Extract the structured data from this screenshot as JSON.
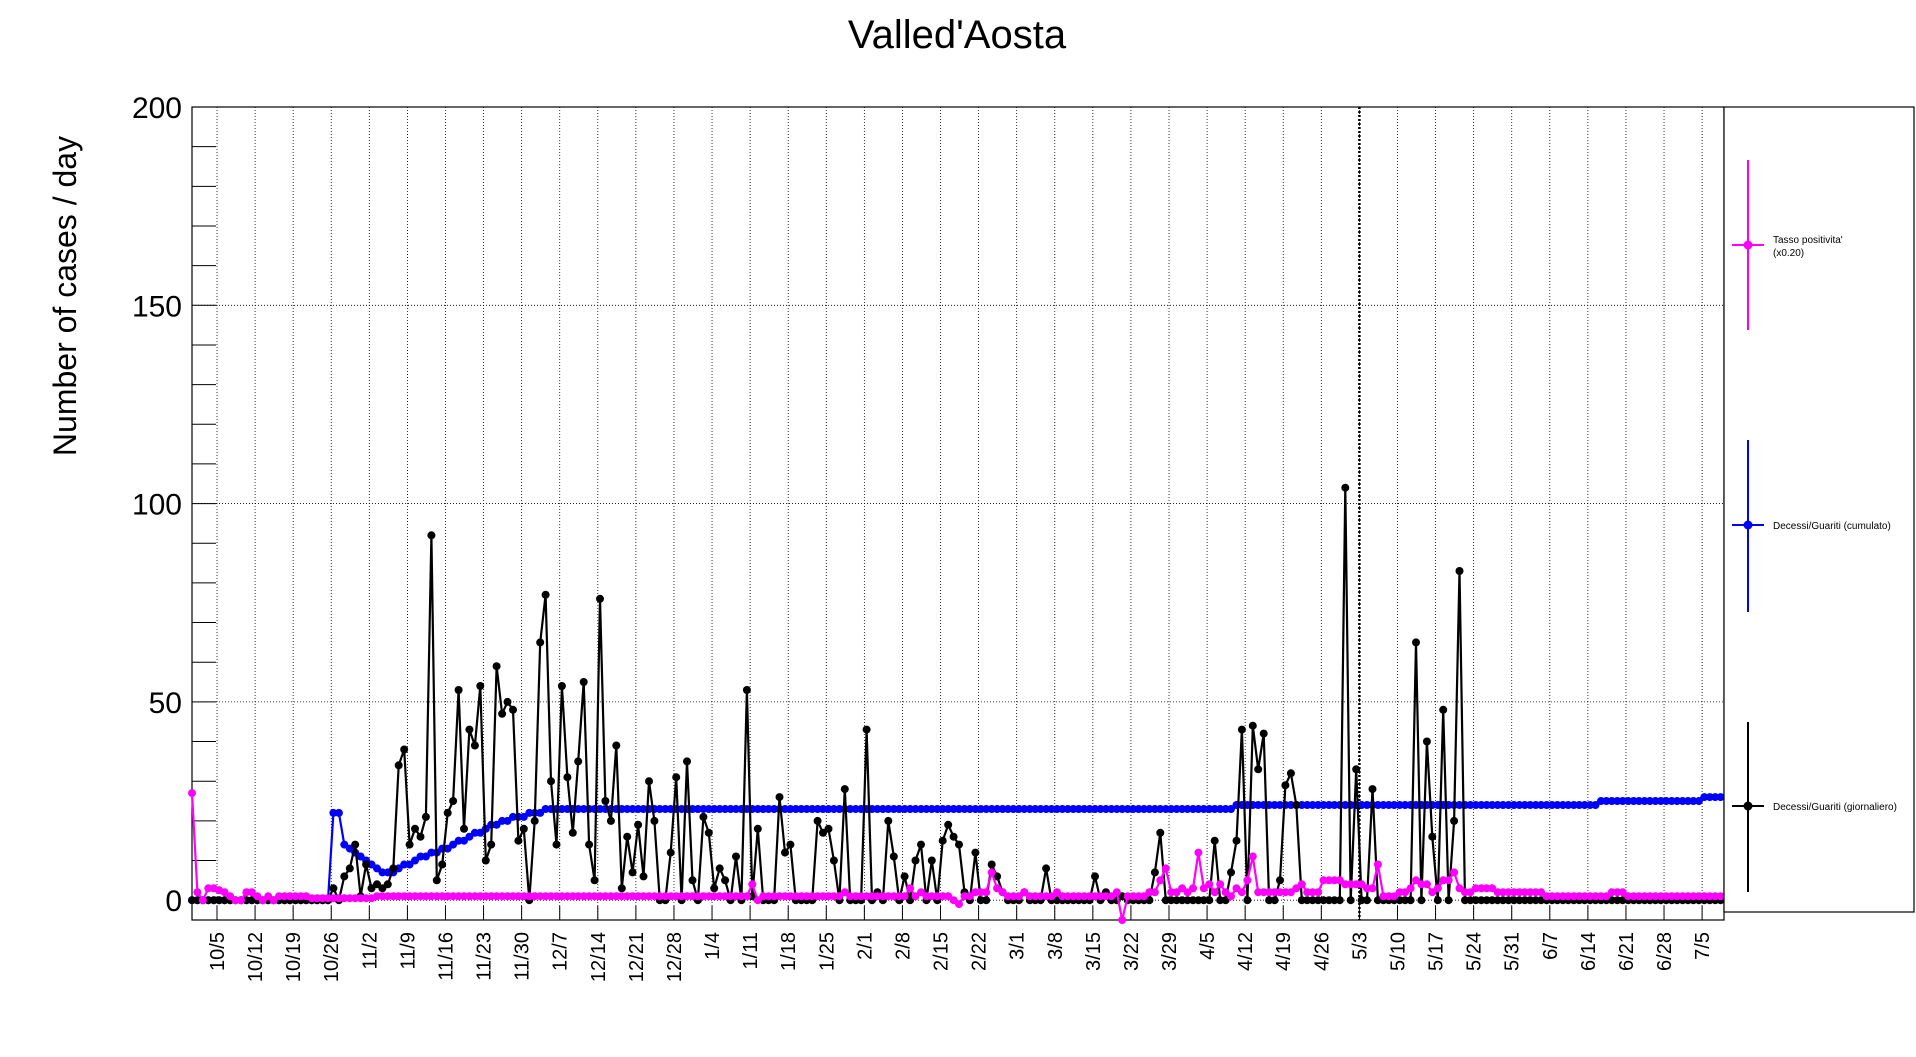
{
  "colors": {
    "positivity": "#ff00ff",
    "cumulative": "#0000ff",
    "daily": "#000000",
    "grid": "#000000",
    "background": "#ffffff"
  },
  "chart_data": {
    "type": "line",
    "title": "Valled'Aosta",
    "ylabel": "Number of cases / day",
    "xlabel": "",
    "ylim": [
      -5,
      200
    ],
    "y_ticks": [
      0,
      50,
      100,
      150,
      200
    ],
    "x_ticks": [
      "10/5",
      "10/12",
      "10/19",
      "10/26",
      "11/2",
      "11/9",
      "11/16",
      "11/23",
      "11/30",
      "12/7",
      "12/14",
      "12/21",
      "12/28",
      "1/4",
      "1/11",
      "1/18",
      "1/25",
      "2/1",
      "2/8",
      "2/15",
      "2/22",
      "3/1",
      "3/8",
      "3/15",
      "3/22",
      "3/29",
      "4/5",
      "4/12",
      "4/19",
      "4/26",
      "5/3",
      "5/10",
      "5/17",
      "5/24",
      "5/31",
      "6/7",
      "6/14",
      "6/21",
      "6/28",
      "7/5"
    ],
    "grid": true,
    "legend_position": "right",
    "vertical_marker": "5/3",
    "series": [
      {
        "name": "Tasso positivita' (x0.20)",
        "color": "#ff00ff",
        "values": [
          27,
          2,
          0,
          3,
          3,
          2.5,
          2,
          1,
          0,
          0,
          2,
          2,
          1,
          0,
          1,
          0,
          1,
          1,
          1,
          1,
          1,
          1,
          0.5,
          0.5,
          0.5,
          0.5,
          0.5,
          0.5,
          0.5,
          0.5,
          0.5,
          0.5,
          0.5,
          0.5,
          1,
          1,
          1,
          1,
          1,
          1,
          1,
          1,
          1,
          1,
          1,
          1,
          1,
          1,
          1,
          1,
          1,
          1,
          1,
          1,
          1,
          1,
          1,
          1,
          1,
          1,
          1,
          1,
          1,
          1,
          1,
          1,
          1,
          1,
          1,
          1,
          1,
          1,
          1,
          1,
          1,
          1,
          1,
          1,
          1,
          1,
          1,
          1,
          1,
          1,
          1,
          1,
          1,
          1,
          1,
          1,
          1,
          1,
          1,
          1,
          1,
          1,
          1,
          1,
          1,
          1,
          1,
          1,
          1,
          4,
          0,
          1,
          1,
          1,
          1,
          1,
          1,
          1,
          1,
          1,
          1,
          1,
          1,
          1,
          1,
          1,
          2,
          1,
          1,
          1,
          1,
          1,
          1,
          1,
          1,
          1,
          1,
          1,
          3,
          1,
          2,
          1,
          1,
          1,
          1,
          1,
          0,
          -1,
          1,
          1,
          2,
          2,
          2,
          7,
          3,
          2,
          1,
          1,
          1,
          2,
          1,
          1,
          1,
          1,
          1,
          2,
          1,
          1,
          1,
          1,
          1,
          1,
          1,
          1,
          1,
          1,
          2,
          -5,
          1,
          1,
          1,
          1,
          2,
          2,
          5,
          8,
          2,
          2,
          3,
          2,
          3,
          12,
          3,
          4,
          2,
          4,
          2,
          1,
          3,
          2,
          5,
          11,
          2,
          2,
          2,
          2,
          2,
          2,
          2,
          3,
          4,
          2,
          2,
          2,
          5,
          5,
          5,
          5,
          4,
          4,
          4,
          4,
          3,
          3,
          9,
          1,
          1,
          1,
          2,
          2,
          3,
          5,
          4,
          4,
          2,
          3,
          5,
          5,
          7,
          3,
          2,
          2,
          3,
          3,
          3,
          3,
          2,
          2,
          2,
          2,
          2,
          2,
          2,
          2,
          2,
          1,
          1,
          1,
          1,
          1,
          1,
          1,
          1,
          1,
          1,
          1,
          1,
          2,
          2,
          2,
          1,
          1,
          1,
          1,
          1,
          1,
          1,
          1,
          1,
          1,
          1,
          1,
          1,
          1,
          1,
          1,
          1,
          1,
          1,
          1,
          1,
          1,
          1,
          1,
          1,
          1,
          1,
          1,
          1,
          1,
          1,
          1,
          1,
          1,
          1,
          1,
          1,
          1,
          1,
          1,
          1,
          1,
          1,
          1,
          1,
          1,
          1,
          1,
          1
        ]
      },
      {
        "name": "Decessi/Guariti (cumulato)",
        "color": "#0000ff",
        "values": [
          0,
          0,
          0,
          0,
          0,
          0,
          0,
          0,
          0,
          0,
          0,
          0,
          0,
          0,
          0,
          0,
          0,
          0,
          0,
          0,
          0,
          0,
          0,
          0,
          0,
          0,
          22,
          22,
          14,
          13,
          12,
          11,
          10,
          9,
          8,
          7,
          7,
          7,
          8,
          9,
          9,
          10,
          11,
          11,
          12,
          12,
          13,
          13,
          14,
          15,
          15,
          16,
          17,
          17,
          18,
          19,
          19,
          20,
          20,
          21,
          21,
          21,
          22,
          22,
          22,
          23,
          23,
          23,
          23,
          23,
          23,
          23,
          23,
          23,
          23,
          23,
          23,
          23,
          23,
          23,
          23,
          23,
          23,
          23,
          23,
          23,
          23,
          23,
          23,
          23,
          23,
          23,
          23,
          23,
          23,
          23,
          23,
          23,
          23,
          23,
          23,
          23,
          23,
          23,
          23,
          23,
          23,
          23,
          23,
          23,
          23,
          23,
          23,
          23,
          23,
          23,
          23,
          23,
          23,
          23,
          23,
          23,
          23,
          23,
          23,
          23,
          23,
          23,
          23,
          23,
          23,
          23,
          23,
          23,
          23,
          23,
          23,
          23,
          23,
          23,
          23,
          23,
          23,
          23,
          23,
          23,
          23,
          23,
          23,
          23,
          23,
          23,
          23,
          23,
          23,
          23,
          23,
          23,
          23,
          23,
          23,
          23,
          23,
          23,
          23,
          23,
          23,
          23,
          23,
          23,
          23,
          23,
          23,
          23,
          23,
          23,
          23,
          23,
          23,
          23,
          23,
          23,
          23,
          23,
          23,
          23,
          23,
          23,
          23,
          23,
          23,
          23,
          24,
          24,
          24,
          24,
          24,
          24,
          24,
          24,
          24,
          24,
          24,
          24,
          24,
          24,
          24,
          24,
          24,
          24,
          24,
          24,
          24,
          24,
          24,
          24,
          24,
          24,
          24,
          24,
          24,
          24,
          24,
          24,
          24,
          24,
          24,
          24,
          24,
          24,
          24,
          24,
          24,
          24,
          24,
          24,
          24,
          24,
          24,
          24,
          24,
          24,
          24,
          24,
          24,
          24,
          24,
          24,
          24,
          24,
          24,
          24,
          24,
          24,
          24,
          24,
          24,
          24,
          24,
          25,
          25,
          25,
          25,
          25,
          25,
          25,
          25,
          25,
          25,
          25,
          25,
          25,
          25,
          25,
          25,
          25,
          25,
          25,
          26,
          26,
          26,
          26,
          26,
          26,
          26,
          26,
          26,
          27,
          27,
          27,
          27,
          27,
          27,
          27,
          27,
          27,
          27,
          28,
          28,
          28,
          28,
          28
        ]
      },
      {
        "name": "Decessi/Guariti (giornaliero)",
        "color": "#000000",
        "values": [
          0,
          0,
          0,
          0,
          0,
          0,
          0,
          0,
          0,
          0,
          0,
          0,
          0,
          0,
          0,
          0,
          0,
          0,
          0,
          0,
          0,
          0,
          0,
          0,
          0,
          0,
          3,
          0,
          6,
          8,
          14,
          1,
          9,
          3,
          4,
          3,
          4,
          8,
          34,
          38,
          14,
          18,
          16,
          21,
          92,
          5,
          9,
          22,
          25,
          53,
          18,
          43,
          39,
          54,
          10,
          14,
          59,
          47,
          50,
          48,
          15,
          18,
          0,
          20,
          65,
          77,
          30,
          14,
          54,
          31,
          17,
          35,
          55,
          14,
          5,
          76,
          25,
          20,
          39,
          3,
          16,
          7,
          19,
          6,
          30,
          20,
          0,
          0,
          12,
          31,
          0,
          35,
          5,
          0,
          21,
          17,
          3,
          8,
          5,
          0,
          11,
          0,
          53,
          1,
          18,
          0,
          0,
          0,
          26,
          12,
          14,
          0,
          0,
          0,
          0,
          20,
          17,
          18,
          10,
          0,
          28,
          0,
          0,
          0,
          43,
          0,
          2,
          0,
          20,
          11,
          0,
          6,
          0,
          10,
          14,
          0,
          10,
          0,
          15,
          19,
          16,
          14,
          2,
          0,
          12,
          0,
          0,
          9,
          6,
          2,
          0,
          0,
          0,
          2,
          0,
          0,
          0,
          8,
          0,
          0,
          0,
          0,
          0,
          0,
          0,
          0,
          6,
          0,
          2,
          0,
          0,
          1,
          0,
          0,
          0,
          0,
          0,
          7,
          17,
          0,
          0,
          0,
          0,
          0,
          0,
          0,
          0,
          0,
          15,
          0,
          0,
          7,
          15,
          43,
          0,
          44,
          33,
          42,
          0,
          0,
          5,
          29,
          32,
          24,
          0,
          0,
          0,
          0,
          0,
          0,
          0,
          0,
          104,
          0,
          33,
          0,
          0,
          28,
          0,
          0,
          0,
          0,
          0,
          0,
          0,
          65,
          0,
          40,
          16,
          0,
          48,
          0,
          20,
          83,
          0,
          0,
          0,
          0,
          0,
          0,
          0,
          0,
          0,
          0,
          0,
          0,
          0,
          0,
          0,
          0,
          0,
          0,
          0,
          0,
          0,
          0,
          0,
          0,
          0,
          0,
          0,
          0,
          0,
          0,
          0,
          0,
          0,
          0,
          0,
          0,
          0,
          0,
          0,
          0,
          0,
          0,
          0,
          0,
          0,
          0,
          0,
          0,
          0,
          0,
          0,
          0,
          0,
          0,
          0,
          0,
          0,
          0,
          0,
          0,
          0,
          0,
          0,
          0,
          0,
          0,
          0,
          0,
          0
        ]
      }
    ]
  }
}
